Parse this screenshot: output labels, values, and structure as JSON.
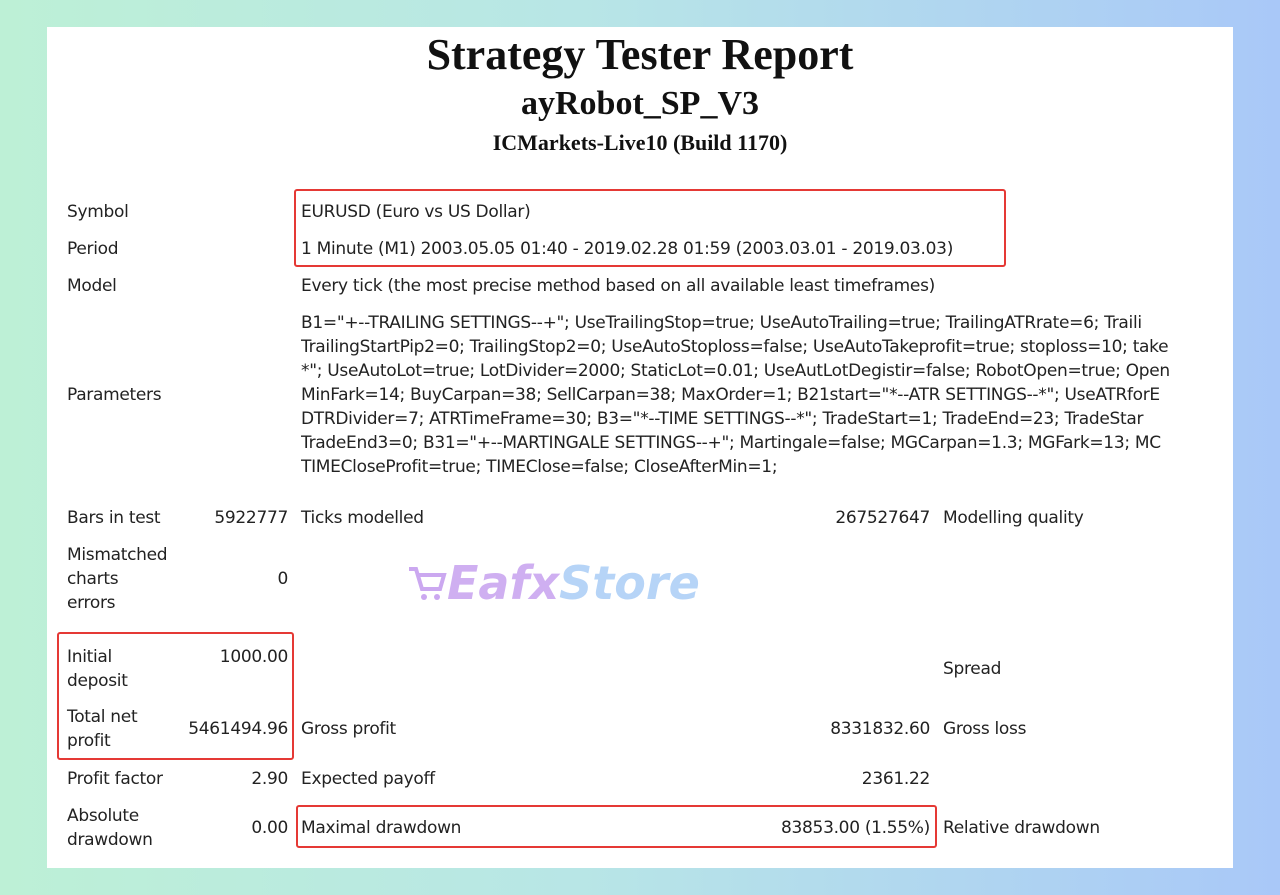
{
  "header": {
    "title": "Strategy Tester Report",
    "expert": "ayRobot_SP_V3",
    "server": "ICMarkets-Live10 (Build 1170)"
  },
  "rows": {
    "symbol": {
      "label": "Symbol",
      "value": "EURUSD (Euro vs US Dollar)"
    },
    "period": {
      "label": "Period",
      "value": "1 Minute (M1) 2003.05.05 01:40 - 2019.02.28 01:59 (2003.03.01 - 2019.03.03)"
    },
    "model": {
      "label": "Model",
      "value": "Every tick (the most precise method based on all available least timeframes)"
    },
    "parameters": {
      "label": "Parameters",
      "lines": [
        "B1=\"+--TRAILING SETTINGS--+\"; UseTrailingStop=true; UseAutoTrailing=true; TrailingATRrate=6; Traili",
        "TrailingStartPip2=0; TrailingStop2=0; UseAutoStoploss=false; UseAutoTakeprofit=true; stoploss=10; take",
        "*\"; UseAutoLot=true; LotDivider=2000; StaticLot=0.01; UseAutLotDegistir=false; RobotOpen=true; Open",
        "MinFark=14; BuyCarpan=38; SellCarpan=38; MaxOrder=1; B21start=\"*--ATR SETTINGS--*\"; UseATRforE",
        "DTRDivider=7; ATRTimeFrame=30; B3=\"*--TIME SETTINGS--*\"; TradeStart=1; TradeEnd=23; TradeStar",
        "TradeEnd3=0; B31=\"+--MARTINGALE SETTINGS--+\"; Martingale=false; MGCarpan=1.3; MGFark=13; MC",
        "TIMECloseProfit=true; TIMEClose=false; CloseAfterMin=1;"
      ]
    },
    "bars": {
      "label": "Bars in test",
      "value": "5922777"
    },
    "ticks": {
      "label": "Ticks modelled",
      "value": "267527647"
    },
    "quality": {
      "label": "Modelling quality"
    },
    "mismatched": {
      "label": [
        "Mismatched",
        "charts",
        "errors"
      ],
      "value": "0"
    },
    "initial": {
      "label": [
        "Initial",
        "deposit"
      ],
      "value": "1000.00"
    },
    "spread": {
      "label": "Spread"
    },
    "net": {
      "label": [
        "Total net",
        "profit"
      ],
      "value": "5461494.96"
    },
    "gross_profit": {
      "label": "Gross profit",
      "value": "8331832.60"
    },
    "gross_loss": {
      "label": "Gross loss"
    },
    "pf": {
      "label": "Profit factor",
      "value": "2.90"
    },
    "payoff": {
      "label": "Expected payoff",
      "value": "2361.22"
    },
    "abs_dd": {
      "label": [
        "Absolute",
        "drawdown"
      ],
      "value": "0.00"
    },
    "max_dd": {
      "label": "Maximal drawdown",
      "value": "83853.00 (1.55%)"
    },
    "rel_dd": {
      "label": "Relative drawdown"
    }
  },
  "watermark": {
    "a": "Eafx",
    "b": "Store"
  },
  "colors": {
    "highlight": "#e53935"
  }
}
